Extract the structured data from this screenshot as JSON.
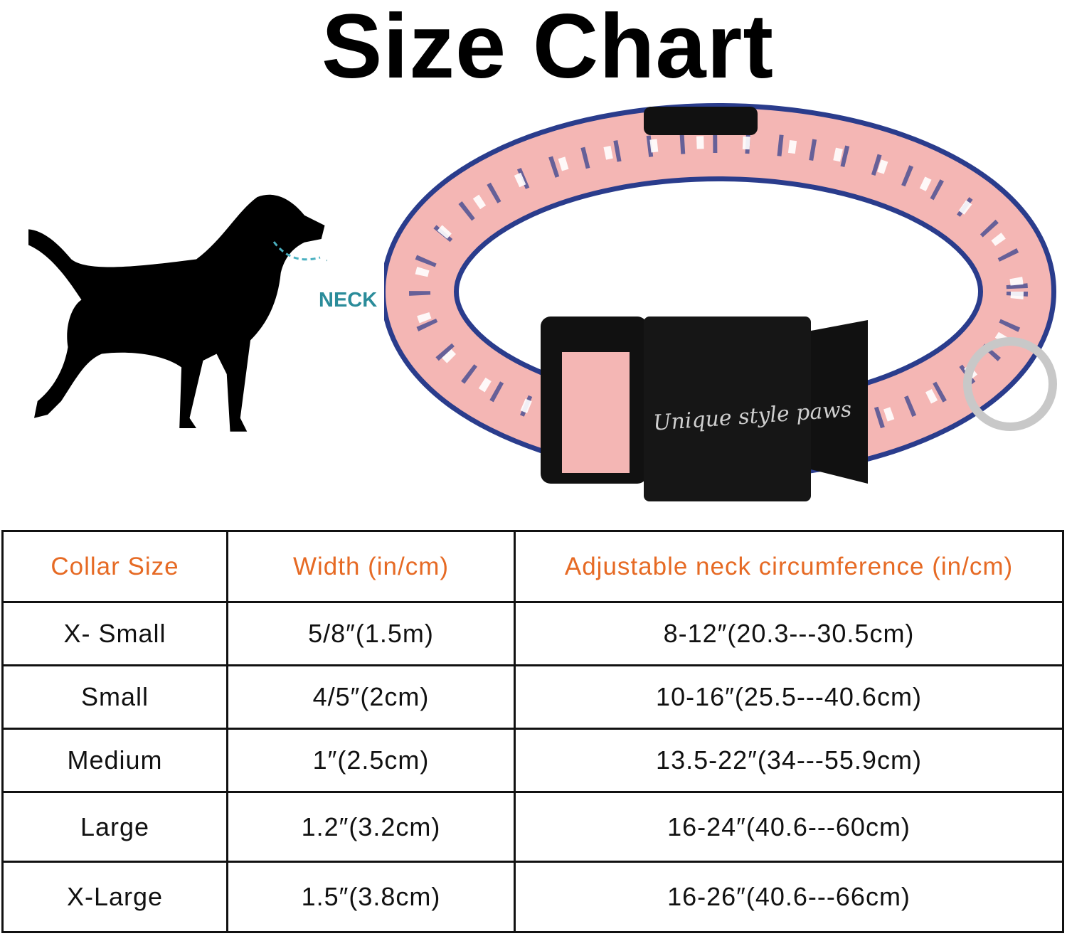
{
  "title": "Size Chart",
  "neck_label": "NECK",
  "brand_text": "Unique style paws",
  "colors": {
    "header_text": "#e66a24",
    "neck_label": "#2b8c9a",
    "collar_pink": "#f4b6b4",
    "collar_blue": "#2a3c8c"
  },
  "table": {
    "headers": [
      "Collar Size",
      "Width (in/cm)",
      "Adjustable neck circumference (in/cm)"
    ],
    "rows": [
      [
        "X- Small",
        "5/8″(1.5m)",
        "8-12″(20.3---30.5cm)"
      ],
      [
        "Small",
        "4/5″(2cm)",
        "10-16″(25.5---40.6cm)"
      ],
      [
        "Medium",
        "1″(2.5cm)",
        "13.5-22″(34---55.9cm)"
      ],
      [
        "Large",
        "1.2″(3.2cm)",
        "16-24″(40.6---60cm)"
      ],
      [
        "X-Large",
        "1.5″(3.8cm)",
        "16-26″(40.6---66cm)"
      ]
    ]
  }
}
